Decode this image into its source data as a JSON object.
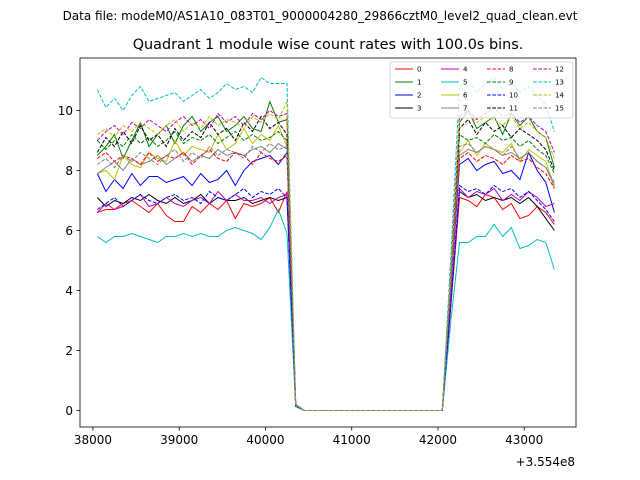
{
  "figure": {
    "suptitle": "Data file: modeM0/AS1A10_083T01_9000004280_29866cztM0_level2_quad_clean.evt"
  },
  "chart_data": {
    "type": "line",
    "title": "Quadrant 1 module wise count rates with 100.0s bins.",
    "xlabel": "",
    "ylabel": "",
    "x_offset_label": "+3.554e8",
    "xlim": [
      37850,
      43600
    ],
    "ylim": [
      -0.55,
      11.75
    ],
    "xticks": [
      38000,
      39000,
      40000,
      41000,
      42000,
      43000
    ],
    "yticks": [
      0,
      2,
      4,
      6,
      8,
      10
    ],
    "grid": false,
    "legend_position": "upper right",
    "legend_columns": 4,
    "x": [
      38050,
      38150,
      38250,
      38350,
      38450,
      38550,
      38650,
      38750,
      38850,
      38950,
      39050,
      39150,
      39250,
      39350,
      39450,
      39550,
      39650,
      39750,
      39850,
      39950,
      40050,
      40150,
      40250,
      40350,
      40450,
      40550,
      40650,
      40750,
      40850,
      40950,
      41050,
      41150,
      41250,
      41350,
      41450,
      41550,
      41650,
      41750,
      41850,
      41950,
      42050,
      42150,
      42250,
      42350,
      42450,
      42550,
      42650,
      42750,
      42850,
      42950,
      43050,
      43150,
      43250,
      43350
    ],
    "series": [
      {
        "name": "0",
        "color": "#ff0000",
        "dash": "solid",
        "values": [
          6.6,
          6.7,
          6.7,
          6.9,
          7.0,
          6.8,
          6.6,
          6.9,
          6.5,
          6.3,
          6.3,
          6.8,
          6.6,
          6.9,
          6.7,
          7.0,
          6.4,
          6.9,
          6.8,
          6.9,
          7.1,
          6.6,
          7.3,
          0.14,
          0,
          0,
          0,
          0,
          0,
          0,
          0,
          0,
          0,
          0,
          0,
          0,
          0,
          0,
          0,
          0,
          0,
          3.5,
          7.1,
          7.0,
          6.8,
          7.2,
          7.1,
          6.7,
          6.9,
          6.4,
          6.5,
          6.8,
          6.6,
          6.2
        ]
      },
      {
        "name": "1",
        "color": "#008000",
        "dash": "solid",
        "values": [
          8.5,
          8.8,
          9.2,
          8.4,
          9.0,
          9.6,
          8.8,
          9.2,
          9.5,
          8.9,
          9.5,
          9.8,
          9.3,
          9.6,
          9.8,
          9.3,
          9.5,
          9.8,
          9.4,
          9.3,
          10.3,
          9.6,
          9.7,
          0.2,
          0,
          0,
          0,
          0,
          0,
          0,
          0,
          0,
          0,
          0,
          0,
          0,
          0,
          0,
          0,
          0,
          0,
          4.6,
          9.6,
          10.0,
          9.4,
          9.6,
          9.8,
          9.2,
          9.9,
          9.5,
          9.8,
          9.3,
          9.1,
          8.1
        ]
      },
      {
        "name": "2",
        "color": "#0000ff",
        "dash": "solid",
        "values": [
          7.9,
          7.3,
          7.7,
          7.4,
          7.9,
          7.5,
          7.8,
          7.8,
          7.6,
          7.7,
          7.8,
          7.5,
          7.9,
          7.6,
          7.7,
          8.0,
          7.5,
          8.0,
          8.3,
          8.4,
          8.5,
          8.2,
          8.6,
          0.17,
          0,
          0,
          0,
          0,
          0,
          0,
          0,
          0,
          0,
          0,
          0,
          0,
          0,
          0,
          0,
          0,
          0,
          4.1,
          8.2,
          8.4,
          8.0,
          8.2,
          8.3,
          7.9,
          8.0,
          7.7,
          8.6,
          8.0,
          7.6,
          6.6
        ]
      },
      {
        "name": "3",
        "color": "#000000",
        "dash": "solid",
        "values": [
          7.1,
          6.8,
          7.0,
          6.9,
          7.1,
          7.0,
          7.2,
          7.0,
          6.9,
          7.1,
          6.9,
          7.0,
          7.2,
          6.9,
          7.1,
          7.0,
          7.0,
          7.1,
          6.9,
          7.0,
          7.1,
          7.0,
          7.1,
          0.15,
          0,
          0,
          0,
          0,
          0,
          0,
          0,
          0,
          0,
          0,
          0,
          0,
          0,
          0,
          0,
          0,
          0,
          3.6,
          7.3,
          7.1,
          7.2,
          7.0,
          7.1,
          7.0,
          7.1,
          6.9,
          7.1,
          6.8,
          6.4,
          6.0
        ]
      },
      {
        "name": "4",
        "color": "#bf00bf",
        "dash": "solid",
        "values": [
          6.6,
          6.9,
          6.7,
          6.8,
          7.0,
          7.2,
          6.8,
          6.9,
          7.1,
          6.9,
          6.8,
          7.0,
          7.1,
          6.9,
          7.3,
          7.0,
          7.2,
          7.0,
          7.0,
          7.1,
          6.9,
          7.1,
          7.2,
          0.15,
          0,
          0,
          0,
          0,
          0,
          0,
          0,
          0,
          0,
          0,
          0,
          0,
          0,
          0,
          0,
          0,
          0,
          3.6,
          7.4,
          7.1,
          7.3,
          7.2,
          7.4,
          7.0,
          7.2,
          7.0,
          7.3,
          7.1,
          6.8,
          6.9
        ]
      },
      {
        "name": "5",
        "color": "#00bfbf",
        "dash": "solid",
        "values": [
          5.8,
          5.6,
          5.8,
          5.8,
          5.9,
          5.8,
          5.7,
          5.6,
          5.8,
          5.8,
          5.9,
          5.8,
          5.9,
          5.8,
          5.8,
          6.0,
          6.1,
          6.0,
          5.9,
          5.7,
          6.1,
          6.7,
          5.9,
          0.13,
          0,
          0,
          0,
          0,
          0,
          0,
          0,
          0,
          0,
          0,
          0,
          0,
          0,
          0,
          0,
          0,
          0,
          3.0,
          5.6,
          5.6,
          5.8,
          5.8,
          6.2,
          5.8,
          6.1,
          5.4,
          5.5,
          5.7,
          5.6,
          4.7
        ]
      },
      {
        "name": "6",
        "color": "#bfbf00",
        "dash": "solid",
        "values": [
          7.9,
          8.0,
          7.7,
          8.5,
          8.2,
          8.1,
          8.6,
          8.4,
          8.3,
          9.0,
          8.5,
          8.8,
          8.7,
          8.6,
          9.2,
          8.7,
          8.9,
          9.4,
          8.9,
          9.2,
          9.0,
          9.5,
          8.8,
          0.18,
          0,
          0,
          0,
          0,
          0,
          0,
          0,
          0,
          0,
          0,
          0,
          0,
          0,
          0,
          0,
          0,
          0,
          4.3,
          8.6,
          9.0,
          8.5,
          8.9,
          8.7,
          8.6,
          8.9,
          8.3,
          8.7,
          8.5,
          8.3,
          7.4
        ]
      },
      {
        "name": "7",
        "color": "#808080",
        "dash": "solid",
        "values": [
          7.9,
          8.1,
          8.3,
          8.0,
          8.4,
          8.2,
          8.3,
          8.5,
          8.2,
          8.4,
          8.6,
          8.3,
          8.5,
          8.4,
          8.7,
          8.5,
          8.6,
          8.5,
          8.7,
          8.8,
          8.6,
          8.9,
          8.7,
          0.18,
          0,
          0,
          0,
          0,
          0,
          0,
          0,
          0,
          0,
          0,
          0,
          0,
          0,
          0,
          0,
          0,
          0,
          4.2,
          8.5,
          8.7,
          8.6,
          8.8,
          8.7,
          8.5,
          8.6,
          8.4,
          8.6,
          8.3,
          8.1,
          7.5
        ]
      },
      {
        "name": "8",
        "color": "#ff0000",
        "dash": "dashed",
        "values": [
          8.4,
          8.6,
          8.3,
          8.5,
          8.4,
          8.2,
          8.6,
          8.3,
          8.5,
          8.4,
          8.6,
          8.2,
          8.5,
          8.7,
          8.4,
          8.3,
          8.6,
          8.5,
          8.2,
          8.6,
          8.4,
          8.3,
          8.5,
          0.18,
          0,
          0,
          0,
          0,
          0,
          0,
          0,
          0,
          0,
          0,
          0,
          0,
          0,
          0,
          0,
          0,
          0,
          4.2,
          8.4,
          8.6,
          8.3,
          8.5,
          8.4,
          8.2,
          8.5,
          8.3,
          8.4,
          8.1,
          7.9,
          7.4
        ]
      },
      {
        "name": "9",
        "color": "#008000",
        "dash": "dashed",
        "values": [
          9.0,
          8.7,
          9.0,
          8.8,
          9.2,
          8.9,
          9.1,
          8.8,
          9.0,
          9.3,
          8.9,
          9.1,
          9.0,
          9.2,
          8.9,
          9.1,
          9.3,
          9.0,
          9.2,
          9.0,
          9.1,
          9.3,
          9.0,
          0.19,
          0,
          0,
          0,
          0,
          0,
          0,
          0,
          0,
          0,
          0,
          0,
          0,
          0,
          0,
          0,
          0,
          0,
          4.4,
          9.2,
          9.0,
          9.1,
          8.9,
          9.2,
          9.0,
          9.1,
          8.8,
          9.0,
          8.7,
          8.5,
          7.9
        ]
      },
      {
        "name": "10",
        "color": "#0000ff",
        "dash": "dashed",
        "values": [
          6.7,
          6.9,
          7.1,
          6.8,
          7.0,
          7.2,
          7.0,
          6.9,
          7.1,
          7.2,
          7.0,
          7.1,
          6.9,
          7.3,
          7.1,
          7.0,
          7.2,
          7.4,
          7.1,
          7.3,
          7.2,
          7.4,
          7.1,
          0.15,
          0,
          0,
          0,
          0,
          0,
          0,
          0,
          0,
          0,
          0,
          0,
          0,
          0,
          0,
          0,
          0,
          0,
          3.6,
          7.5,
          7.3,
          7.4,
          7.2,
          7.5,
          7.3,
          7.4,
          7.1,
          7.3,
          7.0,
          6.7,
          6.3
        ]
      },
      {
        "name": "11",
        "color": "#000000",
        "dash": "dashed",
        "values": [
          8.6,
          9.1,
          8.8,
          9.3,
          8.9,
          9.5,
          9.0,
          9.2,
          8.8,
          9.4,
          9.0,
          9.3,
          9.1,
          9.6,
          9.2,
          9.4,
          9.0,
          9.6,
          9.3,
          9.8,
          9.4,
          9.6,
          9.2,
          0.19,
          0,
          0,
          0,
          0,
          0,
          0,
          0,
          0,
          0,
          0,
          0,
          0,
          0,
          0,
          0,
          0,
          0,
          4.5,
          9.4,
          9.7,
          9.2,
          9.6,
          9.3,
          9.5,
          9.1,
          9.4,
          9.2,
          9.0,
          8.7,
          8.0
        ]
      },
      {
        "name": "12",
        "color": "#bf00bf",
        "dash": "dashed",
        "values": [
          9.0,
          9.3,
          9.5,
          9.2,
          9.6,
          9.4,
          9.7,
          9.5,
          9.3,
          9.6,
          9.8,
          9.5,
          9.7,
          9.4,
          9.9,
          9.6,
          9.8,
          9.5,
          9.9,
          9.7,
          10.0,
          9.8,
          9.9,
          0.2,
          0,
          0,
          0,
          0,
          0,
          0,
          0,
          0,
          0,
          0,
          0,
          0,
          0,
          0,
          0,
          0,
          0,
          4.7,
          9.8,
          10.0,
          9.7,
          9.9,
          10.1,
          9.8,
          9.9,
          9.6,
          9.8,
          9.5,
          9.3,
          8.6
        ]
      },
      {
        "name": "13",
        "color": "#00bfbf",
        "dash": "dashed",
        "values": [
          10.7,
          10.1,
          10.4,
          10.0,
          10.5,
          10.8,
          10.3,
          10.4,
          10.5,
          10.6,
          10.3,
          10.5,
          10.7,
          10.4,
          10.6,
          10.9,
          10.7,
          10.8,
          10.6,
          11.1,
          10.9,
          10.9,
          10.9,
          0.22,
          0,
          0,
          0,
          0,
          0,
          0,
          0,
          0,
          0,
          0,
          0,
          0,
          0,
          0,
          0,
          0,
          0,
          5.2,
          10.8,
          11.0,
          10.6,
          10.9,
          11.1,
          10.7,
          10.9,
          10.6,
          10.8,
          10.5,
          10.2,
          9.3
        ]
      },
      {
        "name": "14",
        "color": "#bfbf00",
        "dash": "dashed",
        "values": [
          9.2,
          9.4,
          9.1,
          9.5,
          9.3,
          9.6,
          9.4,
          9.2,
          9.5,
          9.7,
          9.3,
          9.6,
          9.4,
          9.8,
          9.5,
          9.7,
          9.6,
          9.4,
          9.8,
          9.6,
          9.9,
          9.7,
          10.3,
          0.2,
          0,
          0,
          0,
          0,
          0,
          0,
          0,
          0,
          0,
          0,
          0,
          0,
          0,
          0,
          0,
          0,
          0,
          4.6,
          9.7,
          9.9,
          9.6,
          9.8,
          9.7,
          9.5,
          9.8,
          9.4,
          9.6,
          9.3,
          9.1,
          8.4
        ]
      },
      {
        "name": "15",
        "color": "#808080",
        "dash": "dashed",
        "values": [
          8.2,
          8.4,
          8.1,
          8.5,
          8.3,
          8.6,
          8.4,
          8.2,
          8.5,
          8.7,
          8.3,
          8.6,
          8.4,
          8.8,
          8.5,
          8.7,
          8.6,
          8.4,
          8.8,
          8.6,
          8.9,
          8.7,
          8.8,
          0.18,
          0,
          0,
          0,
          0,
          0,
          0,
          0,
          0,
          0,
          0,
          0,
          0,
          0,
          0,
          0,
          0,
          0,
          4.3,
          8.8,
          8.9,
          8.6,
          8.8,
          8.7,
          8.5,
          8.8,
          8.4,
          8.6,
          8.3,
          8.1,
          7.6
        ]
      }
    ]
  }
}
